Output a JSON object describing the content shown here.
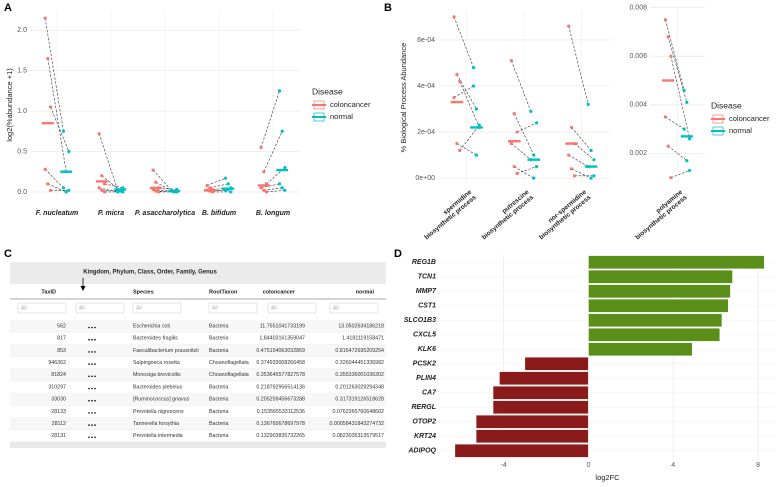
{
  "panels": [
    "A",
    "B",
    "C",
    "D"
  ],
  "chart_data": [
    {
      "type": "paired_dot",
      "ylabel": "log2(%abundance +1)",
      "categories": [
        "F. nucleatum",
        "P. micra",
        "P. asaccharolytica",
        "B. bifidum",
        "B. longum"
      ],
      "ylim": [
        -0.1,
        2.25
      ],
      "yticks": [
        {
          "value": 0,
          "label": "0.0"
        },
        0.5,
        {
          "value": 1,
          "label": "1.0"
        },
        1.5,
        {
          "value": 2,
          "label": "2.0"
        }
      ],
      "grid": true,
      "legend_title": "Disease",
      "series": [
        {
          "name": "coloncancer",
          "color": "#f8766d",
          "points": [
            [
              2.15,
              1.65,
              1.05,
              0.28,
              0.1,
              0.02
            ],
            [
              0.72,
              0.2,
              0.1,
              0.05,
              0.02,
              0.0
            ],
            [
              0.27,
              0.12,
              0.05,
              0.03,
              0.01,
              0.0
            ],
            [
              0.08,
              0.05,
              0.03,
              0.02,
              0.01,
              0.0
            ],
            [
              0.55,
              0.25,
              0.1,
              0.05,
              0.02,
              0.0
            ]
          ],
          "medians": [
            0.85,
            0.13,
            0.05,
            0.02,
            0.08
          ]
        },
        {
          "name": "normal",
          "color": "#00bfc4",
          "points": [
            [
              0.75,
              0.25,
              0.5,
              0.05,
              0.0,
              0.02
            ],
            [
              0.03,
              0.02,
              0.05,
              0.0,
              0.01,
              0.0
            ],
            [
              0.02,
              0.0,
              0.03,
              0.01,
              0.0,
              0.0
            ],
            [
              0.17,
              0.1,
              0.05,
              0.02,
              0.03,
              0.0
            ],
            [
              1.25,
              0.75,
              0.3,
              0.1,
              0.05,
              0.02
            ]
          ],
          "medians": [
            0.25,
            0.03,
            0.01,
            0.04,
            0.27
          ]
        }
      ]
    },
    {
      "type": "paired_dot",
      "ylabel": "% Biological Process Abundance",
      "categories": [
        [
          "spermidine",
          "biosynthetic process"
        ],
        [
          "putrescine",
          "biosynthetic process"
        ],
        [
          "nor-spermidine",
          "biosynthetic process"
        ]
      ],
      "ylim": [
        -3e-05,
        0.00073
      ],
      "yticks": [
        {
          "value": 0,
          "label": "0e+00"
        },
        {
          "value": 0.0002,
          "label": "2e-04"
        },
        {
          "value": 0.0004,
          "label": "4e-04"
        },
        {
          "value": 0.0006,
          "label": "6e-04"
        }
      ],
      "grid": true,
      "series": [
        {
          "color": "#f8766d",
          "points": [
            [
              0.0007,
              0.00045,
              0.00042,
              0.00035,
              0.00015,
              0.00012
            ],
            [
              0.00051,
              0.00028,
              0.0002,
              0.00015,
              5e-05,
              2e-05
            ],
            [
              0.00066,
              0.00022,
              0.00015,
              0.0001,
              4e-05,
              1e-05
            ]
          ],
          "medians": [
            0.00033,
            0.00016,
            0.00015
          ]
        },
        {
          "color": "#00bfc4",
          "points": [
            [
              0.00048,
              0.0003,
              0.00022,
              0.0004,
              0.0001,
              0.00023
            ],
            [
              0.00029,
              0.0001,
              0.00024,
              8e-05,
              0.0,
              5e-05
            ],
            [
              0.00032,
              0.00012,
              8e-05,
              5e-05,
              0.0,
              1e-05
            ]
          ],
          "medians": [
            0.00022,
            8e-05,
            5e-05
          ]
        }
      ]
    },
    {
      "type": "paired_dot",
      "categories": [
        [
          "polyamine",
          "biosynthetic process"
        ]
      ],
      "ylim": [
        0.0007,
        0.0079
      ],
      "yticks": [
        0.002,
        0.004,
        0.006,
        0.008
      ],
      "grid": true,
      "legend_title": "Disease",
      "series": [
        {
          "name": "coloncancer",
          "color": "#f8766d",
          "points": [
            [
              0.0075,
              0.0068,
              0.006,
              0.0035,
              0.0023,
              0.001
            ]
          ],
          "medians": [
            0.005
          ]
        },
        {
          "name": "normal",
          "color": "#00bfc4",
          "points": [
            [
              0.0046,
              0.0041,
              0.0026,
              0.003,
              0.0017,
              0.0013
            ]
          ],
          "medians": [
            0.0027
          ]
        }
      ]
    },
    {
      "type": "hbar",
      "xlabel": "log2FC",
      "categories": [
        "REG1B",
        "TCN1",
        "MMP7",
        "CST1",
        "SLCO1B3",
        "CXCL5",
        "KLK6",
        "PCSK2",
        "PLIN4",
        "CA7",
        "RERGL",
        "OTOP2",
        "KRT24",
        "ADIPOQ"
      ],
      "values": [
        8.3,
        6.8,
        6.7,
        6.6,
        6.3,
        6.2,
        4.9,
        -3.0,
        -4.2,
        -4.5,
        -4.5,
        -5.3,
        -5.3,
        -6.3
      ],
      "color_positive": "#5a8f1a",
      "color_negative": "#8b1a1a",
      "xlim": [
        -7,
        8.8
      ],
      "xticks": [
        -4,
        0,
        4,
        8
      ],
      "grid": true
    }
  ],
  "table": {
    "caption": "Kingdom, Phylum, Class, Order, Family, Genus",
    "headers": [
      "TaxID",
      "Species",
      "RootTaxon",
      "coloncancer",
      "normal"
    ],
    "filter_placeholder": "All",
    "rows": [
      [
        "562",
        "Escherichia coli",
        "Bacteria",
        "11.7551041733199",
        "13.0502634186218"
      ],
      [
        "817",
        "Bacteroides fragilis",
        "Bacteria",
        "1.84403161359047",
        "1.4181119158471"
      ],
      [
        "853",
        "Faecalibacterium prausnitzii",
        "Bacteria",
        "0.475154063032869",
        "0.816472695209254"
      ],
      [
        "946362",
        "Salpingoeca rosetta",
        "Choanoflagellata",
        "0.374933008266458",
        "0.326044451336982"
      ],
      [
        "81824",
        "Monosiga brevicollis",
        "Choanoflagellata",
        "0.353645577827578",
        "0.355336001036302"
      ],
      [
        "310297",
        "Bacteroides plebeius",
        "Bacteria",
        "0.218792956514136",
        "0.201263029294348"
      ],
      [
        "33030",
        "[Ruminococcus] gnavus",
        "Bacteria",
        "0.205259456673288",
        "0.317319126518628"
      ],
      [
        "28133",
        "Prevotella nigrescens",
        "Bacteria",
        "0.153565533112536",
        "0.0762365760648602"
      ],
      [
        "28112",
        "Tannerella forsythia",
        "Bacteria",
        "0.136765678697978",
        "0.00058431843274732"
      ],
      [
        "28131",
        "Prevotella intermedia",
        "Bacteria",
        "0.132903835732265",
        "0.0823035313579517"
      ]
    ]
  }
}
